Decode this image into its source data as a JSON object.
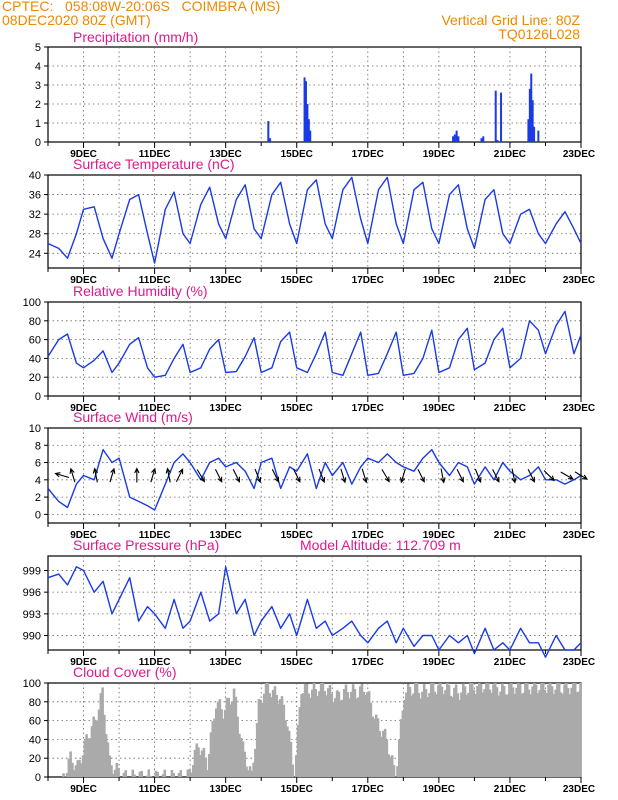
{
  "header": {
    "line1": "CPTEC:   058:08W-20:06S   COIMBRA (MS)",
    "line2": "08DEC2020 80Z (GMT)",
    "right1": "Vertical Grid Line: 80Z",
    "right2": "TQ0126L028"
  },
  "colors": {
    "header": "#ee8800",
    "title": "#e0198c",
    "series": "#1a3ae6",
    "bars": "#1a3ae6",
    "cloud": "#aaaaaa"
  },
  "x_tick_labels": [
    "9DEC",
    "11DEC",
    "13DEC",
    "15DEC",
    "17DEC",
    "19DEC",
    "21DEC",
    "23DEC"
  ],
  "chart_data": [
    {
      "type": "bar",
      "title": "Precipitation (mm/h)",
      "xlim": [
        8,
        23
      ],
      "ylim": [
        0,
        5
      ],
      "yticks": [
        0,
        1,
        2,
        3,
        4,
        5
      ],
      "x": [
        14.2,
        14.25,
        15.22,
        15.26,
        15.3,
        15.34,
        15.38,
        19.4,
        19.45,
        19.5,
        19.55,
        20.2,
        20.25,
        20.6,
        20.65,
        20.75,
        21.52,
        21.56,
        21.6,
        21.64,
        21.68,
        21.8
      ],
      "values": [
        1.1,
        0.2,
        3.4,
        3.2,
        2.0,
        1.2,
        0.6,
        0.3,
        0.4,
        0.6,
        0.3,
        0.2,
        0.3,
        2.7,
        0.1,
        2.6,
        1.2,
        2.8,
        3.6,
        2.2,
        0.8,
        0.6
      ]
    },
    {
      "type": "line",
      "title": "Surface Temperature (nC)",
      "xlim": [
        8,
        23
      ],
      "ylim": [
        21,
        40
      ],
      "yticks": [
        24,
        28,
        32,
        36,
        40
      ],
      "x": [
        8,
        8.3,
        8.55,
        8.8,
        9.0,
        9.3,
        9.55,
        9.8,
        10.0,
        10.3,
        10.55,
        10.8,
        11.0,
        11.3,
        11.55,
        11.8,
        12.0,
        12.3,
        12.55,
        12.8,
        13.0,
        13.3,
        13.55,
        13.8,
        14.0,
        14.3,
        14.55,
        14.8,
        15.0,
        15.3,
        15.55,
        15.8,
        16.0,
        16.3,
        16.55,
        16.8,
        17.0,
        17.3,
        17.55,
        17.8,
        18.0,
        18.3,
        18.55,
        18.8,
        19.0,
        19.3,
        19.55,
        19.8,
        20.0,
        20.3,
        20.55,
        20.8,
        21.0,
        21.3,
        21.55,
        21.8,
        22.0,
        22.3,
        22.55,
        22.8,
        23.0
      ],
      "values": [
        26,
        25,
        23,
        28,
        33,
        33.5,
        27,
        23,
        28,
        35,
        36,
        28,
        22,
        33,
        36.5,
        28,
        26,
        34,
        37.5,
        30,
        27,
        35,
        38,
        29,
        27,
        36,
        38.5,
        30,
        26,
        37,
        39,
        30,
        27,
        37,
        39.5,
        31,
        26,
        37,
        39.5,
        30,
        26,
        37,
        38.5,
        29,
        26,
        36,
        38,
        29,
        25,
        35,
        37,
        28,
        26,
        32,
        33,
        28,
        26,
        30,
        32.5,
        29,
        26
      ]
    },
    {
      "type": "line",
      "title": "Relative Humidity (%)",
      "xlim": [
        8,
        23
      ],
      "ylim": [
        0,
        100
      ],
      "yticks": [
        0,
        20,
        40,
        60,
        80,
        100
      ],
      "x": [
        8,
        8.3,
        8.55,
        8.8,
        9.0,
        9.3,
        9.55,
        9.8,
        10.0,
        10.3,
        10.55,
        10.8,
        11.0,
        11.3,
        11.55,
        11.8,
        12.0,
        12.3,
        12.55,
        12.8,
        13.0,
        13.3,
        13.55,
        13.8,
        14.0,
        14.3,
        14.55,
        14.8,
        15.0,
        15.3,
        15.55,
        15.8,
        16.0,
        16.3,
        16.55,
        16.8,
        17.0,
        17.3,
        17.55,
        17.8,
        18.0,
        18.3,
        18.55,
        18.8,
        19.0,
        19.3,
        19.55,
        19.8,
        20.0,
        20.3,
        20.55,
        20.8,
        21.0,
        21.3,
        21.55,
        21.8,
        22.0,
        22.3,
        22.55,
        22.8,
        23.0
      ],
      "values": [
        42,
        60,
        66,
        35,
        30,
        38,
        48,
        25,
        35,
        55,
        62,
        30,
        20,
        22,
        40,
        55,
        25,
        30,
        50,
        60,
        25,
        26,
        42,
        62,
        25,
        30,
        58,
        68,
        30,
        25,
        45,
        68,
        25,
        22,
        45,
        68,
        22,
        24,
        45,
        68,
        22,
        24,
        40,
        70,
        25,
        30,
        60,
        72,
        28,
        35,
        60,
        72,
        30,
        40,
        80,
        70,
        45,
        75,
        90,
        45,
        65
      ]
    },
    {
      "type": "line",
      "title": "Surface Wind (m/s)",
      "xlim": [
        8,
        23
      ],
      "ylim": [
        -1,
        10
      ],
      "yticks": [
        0,
        2,
        4,
        6,
        8,
        10
      ],
      "x": [
        8,
        8.3,
        8.55,
        8.8,
        9.0,
        9.3,
        9.55,
        9.8,
        10.0,
        10.3,
        10.55,
        10.8,
        11.0,
        11.3,
        11.55,
        11.8,
        12.0,
        12.3,
        12.55,
        12.8,
        13.0,
        13.3,
        13.55,
        13.8,
        14.0,
        14.3,
        14.55,
        14.8,
        15.0,
        15.3,
        15.55,
        15.8,
        16.0,
        16.3,
        16.55,
        16.8,
        17.0,
        17.3,
        17.55,
        17.8,
        18.0,
        18.3,
        18.55,
        18.8,
        19.0,
        19.3,
        19.55,
        19.8,
        20.0,
        20.3,
        20.55,
        20.8,
        21.0,
        21.3,
        21.55,
        21.8,
        22.0,
        22.3,
        22.55,
        22.8,
        23.0
      ],
      "values": [
        3,
        1.5,
        0.8,
        3.5,
        4.5,
        4.0,
        7.5,
        6.0,
        6.5,
        2.0,
        1.5,
        1.0,
        0.5,
        3.5,
        6.0,
        7.0,
        6.0,
        4.0,
        6.0,
        6.5,
        5.5,
        6.0,
        5.0,
        3.0,
        6.0,
        6.5,
        3.0,
        5.5,
        5.0,
        7.0,
        3.0,
        6.0,
        4.5,
        6.0,
        3.5,
        5.5,
        6.5,
        6.0,
        7.0,
        6.0,
        5.5,
        5.0,
        6.5,
        7.5,
        6.0,
        4.5,
        6.0,
        5.5,
        3.5,
        5.5,
        4.0,
        6.0,
        5.0,
        4.0,
        4.5,
        5.5,
        4.0,
        4.0,
        3.5,
        4.0,
        4.5
      ],
      "arrows": [
        {
          "x": 8.4,
          "u": -1,
          "v": 0.3
        },
        {
          "x": 8.7,
          "u": -0.3,
          "v": 1
        },
        {
          "x": 9.35,
          "u": -0.2,
          "v": 1
        },
        {
          "x": 9.8,
          "u": 0.3,
          "v": 1
        },
        {
          "x": 10.5,
          "u": 0,
          "v": 1
        },
        {
          "x": 10.95,
          "u": 0.3,
          "v": 1
        },
        {
          "x": 11.4,
          "u": -0.2,
          "v": 1
        },
        {
          "x": 11.7,
          "u": 0.5,
          "v": 1
        },
        {
          "x": 12.3,
          "u": 0.6,
          "v": -1
        },
        {
          "x": 12.8,
          "u": 0.5,
          "v": -1
        },
        {
          "x": 13.3,
          "u": 0.5,
          "v": -1
        },
        {
          "x": 13.9,
          "u": 0.4,
          "v": -1
        },
        {
          "x": 14.4,
          "u": 0.5,
          "v": -1
        },
        {
          "x": 15.0,
          "u": 0.5,
          "v": -1
        },
        {
          "x": 15.7,
          "u": 0.4,
          "v": -1
        },
        {
          "x": 16.3,
          "u": 0.3,
          "v": -1
        },
        {
          "x": 16.9,
          "u": 0.3,
          "v": -1
        },
        {
          "x": 17.5,
          "u": 0.6,
          "v": -1
        },
        {
          "x": 18.0,
          "u": -0.3,
          "v": -1
        },
        {
          "x": 18.5,
          "u": 0.5,
          "v": -1
        },
        {
          "x": 19.1,
          "u": 0.2,
          "v": -1
        },
        {
          "x": 19.6,
          "u": 0.5,
          "v": -1
        },
        {
          "x": 20.1,
          "u": 0.4,
          "v": -1
        },
        {
          "x": 20.6,
          "u": 0.5,
          "v": -1
        },
        {
          "x": 21.1,
          "u": 0.2,
          "v": -1
        },
        {
          "x": 21.6,
          "u": 0.5,
          "v": -1
        },
        {
          "x": 22.1,
          "u": 0.6,
          "v": -0.6
        },
        {
          "x": 22.6,
          "u": 0.7,
          "v": -0.4
        },
        {
          "x": 23.0,
          "u": 0.5,
          "v": -0.3
        }
      ]
    },
    {
      "type": "line",
      "title": "Surface Pressure (hPa)",
      "subtitle": "Model Altitude: 112.709 m",
      "xlim": [
        8,
        23
      ],
      "ylim": [
        988,
        1001
      ],
      "yticks": [
        990,
        993,
        996,
        999
      ],
      "x": [
        8,
        8.3,
        8.55,
        8.8,
        9.0,
        9.3,
        9.55,
        9.8,
        10.0,
        10.3,
        10.55,
        10.8,
        11.0,
        11.3,
        11.55,
        11.8,
        12.0,
        12.3,
        12.55,
        12.8,
        13.0,
        13.3,
        13.55,
        13.8,
        14.0,
        14.3,
        14.55,
        14.8,
        15.0,
        15.3,
        15.55,
        15.8,
        16.0,
        16.3,
        16.55,
        16.8,
        17.0,
        17.3,
        17.55,
        17.8,
        18.0,
        18.3,
        18.55,
        18.8,
        19.0,
        19.3,
        19.55,
        19.8,
        20.0,
        20.3,
        20.55,
        20.8,
        21.0,
        21.3,
        21.55,
        21.8,
        22.0,
        22.3,
        22.55,
        22.8,
        23.0
      ],
      "values": [
        998,
        998.5,
        997,
        999.5,
        999,
        996,
        997.5,
        993,
        995,
        998,
        992,
        994,
        993,
        991,
        995,
        991,
        992,
        996,
        992,
        993,
        999.5,
        993,
        995,
        990,
        992,
        994,
        991,
        993,
        990,
        995,
        991,
        992,
        990,
        991,
        992,
        990,
        989,
        991,
        992,
        989,
        991,
        988.5,
        990,
        990,
        988,
        990,
        989,
        990,
        987.5,
        991,
        988,
        989,
        988,
        991,
        989,
        989,
        987,
        990,
        988,
        988,
        989
      ]
    },
    {
      "type": "area",
      "title": "Cloud Cover (%)",
      "xlim": [
        8,
        23
      ],
      "ylim": [
        0,
        100
      ],
      "yticks": [
        0,
        20,
        40,
        60,
        80,
        100
      ],
      "x": [
        8.4,
        8.6,
        8.8,
        9.1,
        9.3,
        9.5,
        9.7,
        10.1,
        10.4,
        10.7,
        11.0,
        11.3,
        11.6,
        11.9,
        12.2,
        12.45,
        12.7,
        12.9,
        13.2,
        13.45,
        13.7,
        13.9,
        14.1,
        14.3,
        14.5,
        14.7,
        14.9,
        15.1,
        15.3,
        15.5,
        15.7,
        15.9,
        16.1,
        16.4,
        16.7,
        16.9,
        17.2,
        17.5,
        17.75,
        18.0,
        18.3,
        18.5,
        18.8,
        19.1,
        19.3,
        19.55,
        19.8,
        20.0,
        20.3,
        20.55,
        20.8,
        21.0,
        21.3,
        21.6,
        21.9,
        22.2,
        22.5,
        22.8,
        23.0
      ],
      "values": [
        0,
        20,
        10,
        45,
        60,
        90,
        15,
        0,
        0,
        0,
        0,
        0,
        0,
        0,
        35,
        15,
        80,
        70,
        90,
        30,
        0,
        75,
        98,
        90,
        85,
        60,
        0,
        95,
        92,
        92,
        98,
        90,
        85,
        92,
        90,
        95,
        60,
        40,
        0,
        90,
        95,
        90,
        95,
        96,
        92,
        90,
        95,
        96,
        98,
        96,
        92,
        97,
        95,
        96,
        97,
        96,
        95,
        97,
        96
      ]
    }
  ]
}
